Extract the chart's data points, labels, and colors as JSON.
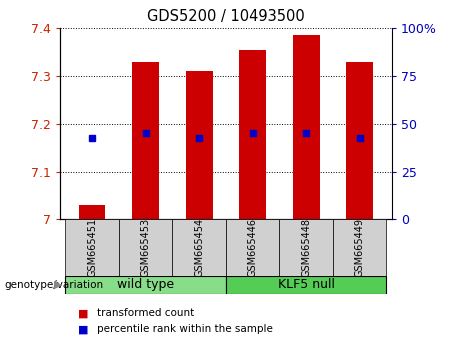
{
  "title": "GDS5200 / 10493500",
  "categories": [
    "GSM665451",
    "GSM665453",
    "GSM665454",
    "GSM665446",
    "GSM665448",
    "GSM665449"
  ],
  "bar_values": [
    7.03,
    7.33,
    7.31,
    7.355,
    7.385,
    7.33
  ],
  "blue_values": [
    7.17,
    7.18,
    7.17,
    7.18,
    7.18,
    7.17
  ],
  "bar_color": "#cc0000",
  "blue_color": "#0000cc",
  "ylim_left": [
    7.0,
    7.4
  ],
  "ylim_right": [
    0,
    100
  ],
  "yticks_left": [
    7.0,
    7.1,
    7.2,
    7.3,
    7.4
  ],
  "yticks_right": [
    0,
    25,
    50,
    75,
    100
  ],
  "ytick_labels_right": [
    "0",
    "25",
    "50",
    "75",
    "100%"
  ],
  "groups": [
    {
      "label": "wild type",
      "indices": [
        0,
        1,
        2
      ],
      "color": "#88dd88"
    },
    {
      "label": "KLF5 null",
      "indices": [
        3,
        4,
        5
      ],
      "color": "#55cc55"
    }
  ],
  "genotype_label": "genotype/variation",
  "legend_items": [
    {
      "label": "transformed count",
      "color": "#cc0000"
    },
    {
      "label": "percentile rank within the sample",
      "color": "#0000cc"
    }
  ],
  "bar_width": 0.5,
  "bar_baseline": 7.0,
  "axis_label_color_left": "#cc2200",
  "axis_label_color_right": "#0000bb",
  "tick_label_bg": "#d0d0d0"
}
